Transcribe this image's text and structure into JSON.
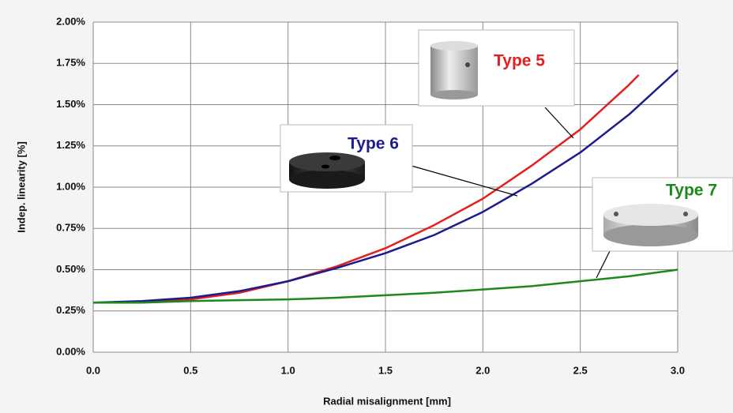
{
  "chart_data": {
    "type": "line",
    "xlabel": "Radial misalignment [mm]",
    "ylabel": "Indep. linearity [%]",
    "xlim": [
      0,
      3
    ],
    "ylim": [
      0,
      2
    ],
    "grid": true,
    "xticks": [
      {
        "value": 0,
        "label": "0.0"
      },
      0.5,
      {
        "value": 1,
        "label": "1.0"
      },
      1.5,
      {
        "value": 2,
        "label": "2.0"
      },
      2.5,
      {
        "value": 3,
        "label": "3.0"
      }
    ],
    "yticks": [
      {
        "value": 0,
        "label": "0.00%"
      },
      {
        "value": 0.25,
        "label": "0.25%"
      },
      {
        "value": 0.5,
        "label": "0.50%"
      },
      {
        "value": 0.75,
        "label": "0.75%"
      },
      {
        "value": 1,
        "label": "1.00%"
      },
      {
        "value": 1.25,
        "label": "1.25%"
      },
      {
        "value": 1.5,
        "label": "1.50%"
      },
      {
        "value": 1.75,
        "label": "1.75%"
      },
      {
        "value": 2,
        "label": "2.00%"
      }
    ],
    "series": [
      {
        "name": "Type 5",
        "color": "#e3201e",
        "x": [
          0,
          0.25,
          0.5,
          0.75,
          1,
          1.25,
          1.5,
          1.75,
          2,
          2.25,
          2.5,
          2.75,
          2.8
        ],
        "values": [
          0.3,
          0.305,
          0.32,
          0.36,
          0.43,
          0.52,
          0.63,
          0.77,
          0.93,
          1.13,
          1.35,
          1.62,
          1.68
        ]
      },
      {
        "name": "Type 6",
        "color": "#1c1c8e",
        "x": [
          0,
          0.25,
          0.5,
          0.75,
          1,
          1.25,
          1.5,
          1.75,
          2,
          2.25,
          2.5,
          2.75,
          3
        ],
        "values": [
          0.3,
          0.31,
          0.33,
          0.37,
          0.43,
          0.51,
          0.6,
          0.71,
          0.85,
          1.02,
          1.21,
          1.44,
          1.71
        ]
      },
      {
        "name": "Type 7",
        "color": "#1b8a1b",
        "x": [
          0,
          0.25,
          0.5,
          0.75,
          1,
          1.25,
          1.5,
          1.75,
          2,
          2.25,
          2.5,
          2.75,
          3
        ],
        "values": [
          0.3,
          0.3,
          0.31,
          0.315,
          0.32,
          0.33,
          0.345,
          0.36,
          0.38,
          0.4,
          0.43,
          0.46,
          0.5
        ]
      }
    ]
  }
}
